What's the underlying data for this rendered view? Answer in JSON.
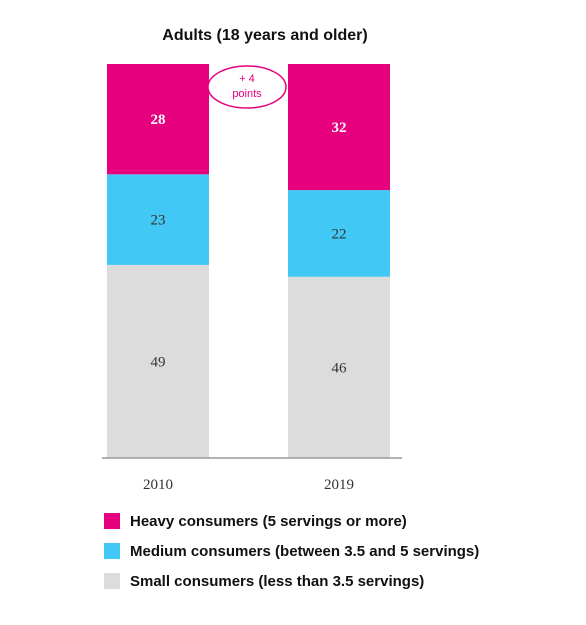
{
  "chart_data": {
    "type": "bar",
    "stacked": true,
    "title": "Adults (18 years and older)",
    "categories": [
      "2010",
      "2019"
    ],
    "series": [
      {
        "name": "Small consumers (less than 3.5 servings)",
        "values": [
          49,
          46
        ],
        "color": "#dcdcdc",
        "label_color": "#333333"
      },
      {
        "name": "Medium consumers (between 3.5 and 5 servings)",
        "values": [
          23,
          22
        ],
        "color": "#42c8f4",
        "label_color": "#333333"
      },
      {
        "name": "Heavy consumers (5 servings or more)",
        "values": [
          28,
          32
        ],
        "color": "#e6007e",
        "label_color": "#ffffff"
      }
    ],
    "ylim": [
      0,
      100
    ],
    "annotation": {
      "line1": "+ 4",
      "line2": "points",
      "color": "#e6007e"
    },
    "legend_position": "bottom",
    "grid": false
  },
  "legend": [
    {
      "label": "Heavy consumers (5 servings or more)",
      "color": "#e6007e"
    },
    {
      "label": "Medium consumers (between 3.5 and 5 servings)",
      "color": "#42c8f4"
    },
    {
      "label": "Small consumers (less than 3.5 servings)",
      "color": "#dcdcdc"
    }
  ]
}
